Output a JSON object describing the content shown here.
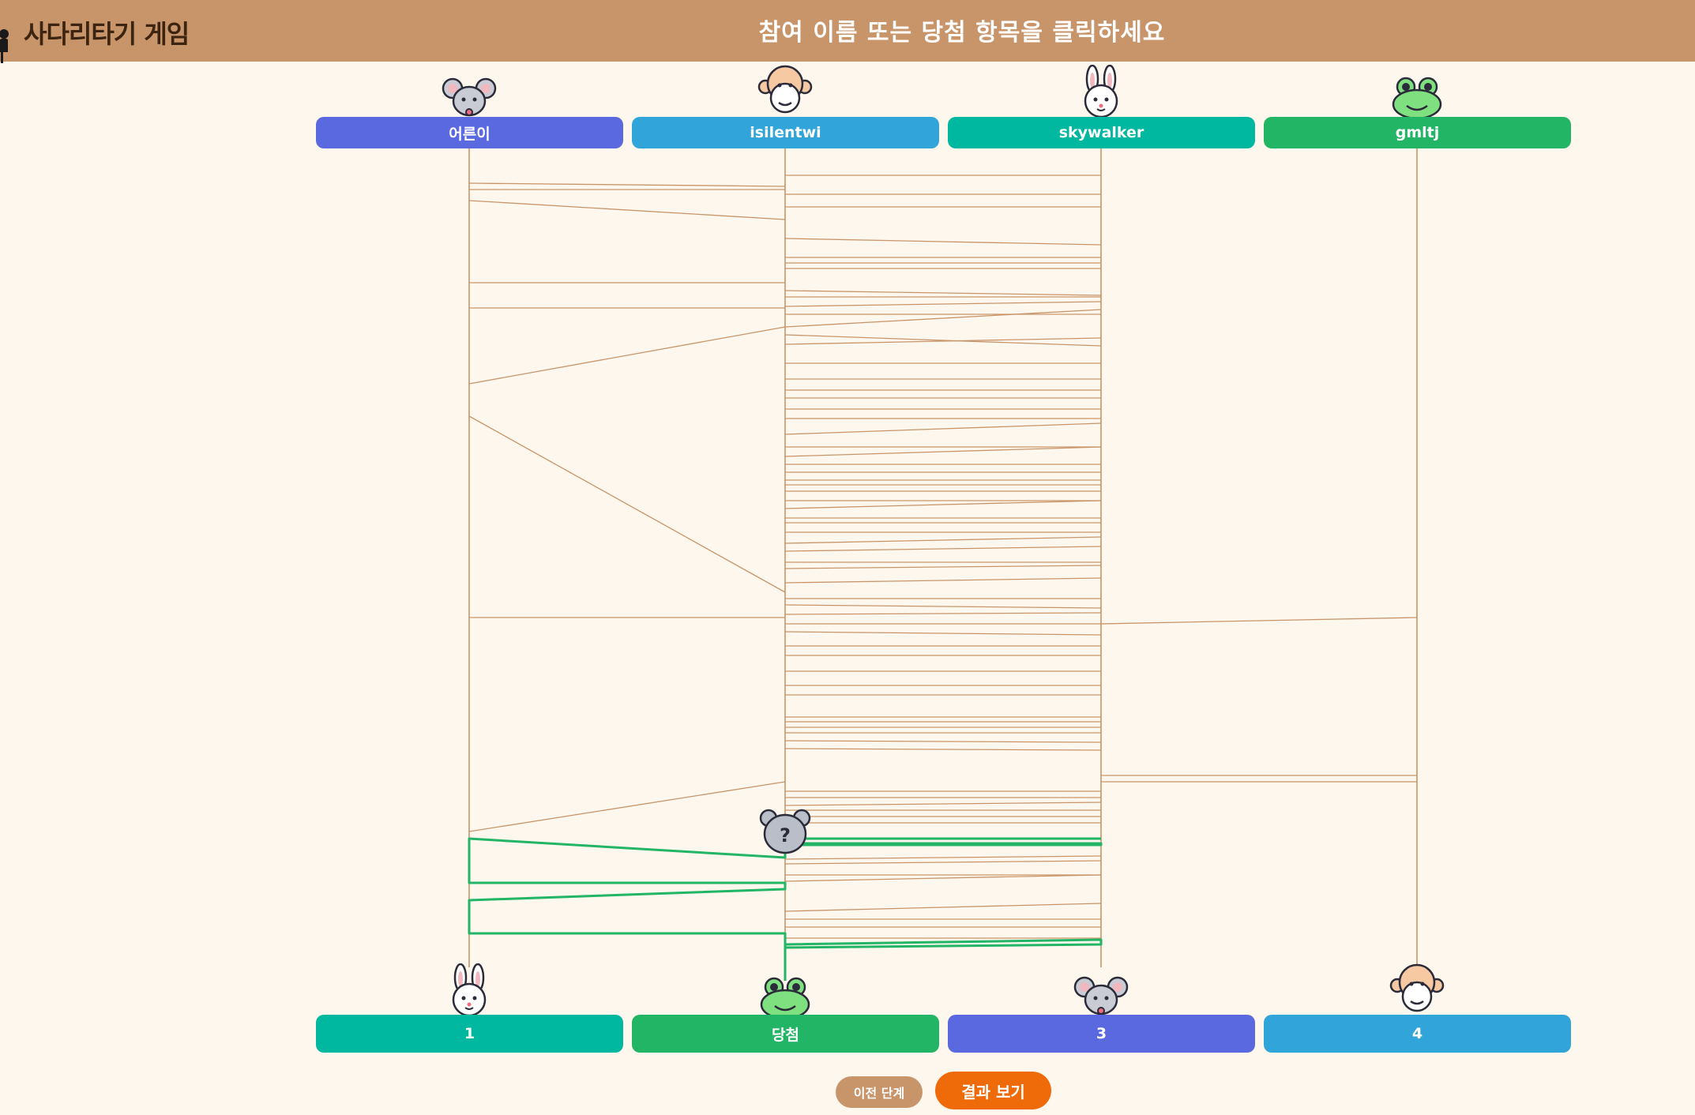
{
  "header": {
    "app_title": "사다리타기 게임",
    "instruction": "참여 이름 또는 당첨 항목을 클릭하세요"
  },
  "participants": [
    {
      "name": "어른이",
      "color": "#5b69e0",
      "animal": "mouse-icon"
    },
    {
      "name": "isilentwi",
      "color": "#31a5d9",
      "animal": "monkey-icon"
    },
    {
      "name": "skywalker",
      "color": "#00b89f",
      "animal": "rabbit-icon"
    },
    {
      "name": "gmltj",
      "color": "#22b566",
      "animal": "frog-icon"
    }
  ],
  "results": [
    {
      "label": "1",
      "color": "#00b89f",
      "animal": "rabbit-icon"
    },
    {
      "label": "당첨",
      "color": "#22b566",
      "animal": "frog-icon"
    },
    {
      "label": "3",
      "color": "#5b69e0",
      "animal": "mouse-icon"
    },
    {
      "label": "4",
      "color": "#31a5d9",
      "animal": "monkey-icon"
    }
  ],
  "tracer": {
    "icon": "hidden-bear-icon",
    "label": "?"
  },
  "colors": {
    "rail": "#c8956a",
    "path": "#22b566",
    "background": "#fef7ed",
    "header": "#c8956a",
    "accent": "#ef6a08"
  },
  "controls": {
    "prev_label": "이전 단계",
    "result_label": "결과 보기"
  }
}
